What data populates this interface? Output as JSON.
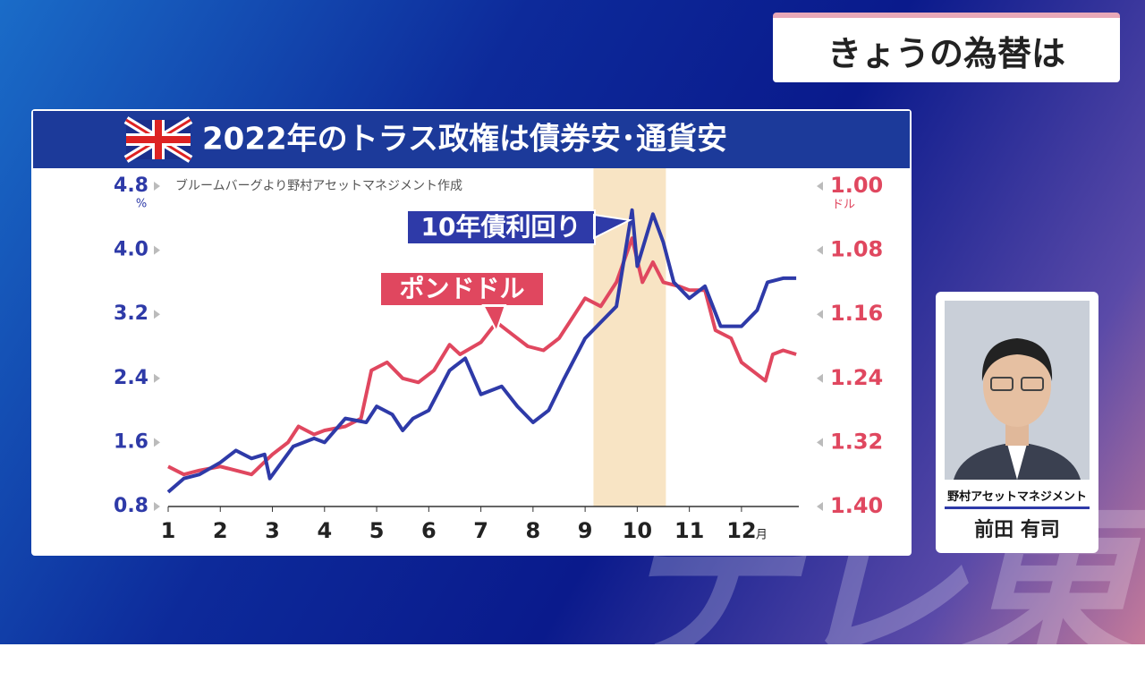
{
  "header": {
    "title": "きょうの為替は"
  },
  "chart_data": {
    "type": "line",
    "title": "2022年のトラス政権は債券安･通貨安",
    "source": "ブルームバーグより野村アセットマネジメント作成",
    "xlim": [
      1,
      13.1
    ],
    "xticks": [
      1,
      2,
      3,
      4,
      5,
      6,
      7,
      8,
      9,
      10,
      11,
      12
    ],
    "x_unit": "月",
    "ylim": [
      0.8,
      4.8
    ],
    "yticks": [
      0.8,
      1.6,
      2.4,
      3.2,
      {
        "value": 4,
        "label": "4.0"
      },
      4.8
    ],
    "y_unit": "%",
    "y2lim": [
      1.4,
      1.0
    ],
    "y2ticks": [
      {
        "value": 1.4,
        "label": "1.40"
      },
      1.32,
      1.24,
      1.16,
      1.08,
      {
        "value": 1,
        "label": "1.00"
      }
    ],
    "y2_unit": "ドル",
    "shaded_range": [
      9.16,
      10.55
    ],
    "series": [
      {
        "name": "10年債利回り",
        "color": "#2e3aa8",
        "x": [
          1.0,
          1.3,
          1.6,
          2.0,
          2.3,
          2.6,
          2.85,
          2.95,
          3.4,
          3.8,
          4.0,
          4.4,
          4.8,
          5.0,
          5.3,
          5.5,
          5.7,
          6.0,
          6.4,
          6.7,
          7.0,
          7.4,
          7.7,
          8.0,
          8.3,
          8.6,
          9.0,
          9.3,
          9.6,
          9.9,
          10.0,
          10.3,
          10.5,
          10.7,
          11.0,
          11.3,
          11.6,
          12.0,
          12.3,
          12.5,
          12.8,
          13.05
        ],
        "values": [
          0.98,
          1.15,
          1.2,
          1.35,
          1.5,
          1.4,
          1.45,
          1.15,
          1.55,
          1.65,
          1.6,
          1.9,
          1.85,
          2.05,
          1.95,
          1.75,
          1.9,
          2.0,
          2.5,
          2.65,
          2.2,
          2.3,
          2.05,
          1.85,
          2.0,
          2.4,
          2.9,
          3.1,
          3.3,
          4.5,
          3.8,
          4.45,
          4.1,
          3.6,
          3.4,
          3.55,
          3.05,
          3.05,
          3.25,
          3.6,
          3.65,
          3.65
        ]
      },
      {
        "name": "ポンドドル",
        "color": "#e0475f",
        "axis": "y2",
        "x": [
          1.0,
          1.3,
          1.6,
          2.0,
          2.3,
          2.6,
          3.0,
          3.3,
          3.5,
          3.8,
          4.0,
          4.4,
          4.7,
          4.9,
          5.2,
          5.5,
          5.8,
          6.1,
          6.4,
          6.6,
          7.0,
          7.3,
          7.5,
          7.9,
          8.2,
          8.5,
          8.8,
          9.0,
          9.3,
          9.6,
          9.9,
          10.1,
          10.3,
          10.5,
          10.8,
          11.0,
          11.3,
          11.5,
          11.8,
          12.0,
          12.3,
          12.46,
          12.6,
          12.8,
          13.05
        ],
        "values": [
          1.35,
          1.36,
          1.355,
          1.35,
          1.355,
          1.36,
          1.335,
          1.32,
          1.3,
          1.31,
          1.305,
          1.3,
          1.29,
          1.23,
          1.22,
          1.24,
          1.245,
          1.23,
          1.198,
          1.21,
          1.195,
          1.17,
          1.18,
          1.2,
          1.205,
          1.19,
          1.16,
          1.14,
          1.15,
          1.12,
          1.065,
          1.12,
          1.095,
          1.12,
          1.125,
          1.13,
          1.13,
          1.18,
          1.19,
          1.22,
          1.235,
          1.243,
          1.21,
          1.205,
          1.21
        ]
      }
    ]
  },
  "guest": {
    "company": "野村アセットマネジメント",
    "name": "前田 有司"
  },
  "watermark": "テレ東"
}
